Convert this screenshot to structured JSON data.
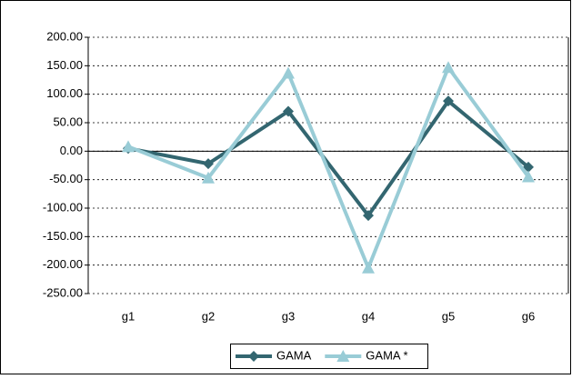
{
  "chart_data": {
    "type": "line",
    "categories": [
      "g1",
      "g2",
      "g3",
      "g4",
      "g5",
      "g6"
    ],
    "series": [
      {
        "name": "GAMA",
        "color": "#336670",
        "marker": "diamond",
        "values": [
          5,
          -22,
          70,
          -113,
          88,
          -28
        ]
      },
      {
        "name": "GAMA *",
        "color": "#99ccd6",
        "marker": "triangle",
        "values": [
          8,
          -47,
          137,
          -205,
          147,
          -45
        ]
      }
    ],
    "ylim": [
      -250,
      200
    ],
    "yticks": [
      {
        "value": -250,
        "label": "-250.00"
      },
      {
        "value": -200,
        "label": "-200.00"
      },
      {
        "value": -150,
        "label": "-150.00"
      },
      {
        "value": -100,
        "label": "-100.00"
      },
      {
        "value": -50,
        "label": "-50.00"
      },
      {
        "value": 0,
        "label": "0.00"
      },
      {
        "value": 50,
        "label": "50.00"
      },
      {
        "value": 100,
        "label": "100.00"
      },
      {
        "value": 150,
        "label": "150.00"
      },
      {
        "value": 200,
        "label": "200.00"
      }
    ],
    "grid": true,
    "legend": "bottom"
  }
}
